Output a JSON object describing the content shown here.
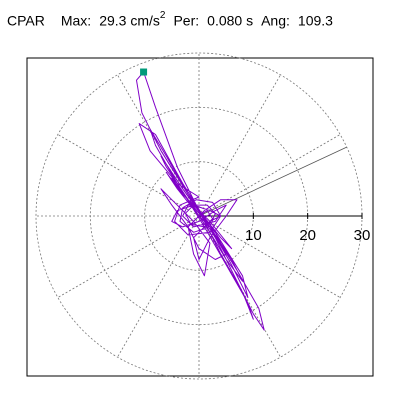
{
  "header": {
    "station": "CPAR",
    "max_label": "Max:",
    "max_value": "29.3 cm/s",
    "max_exponent": "2",
    "period_label": "Per:",
    "period_value": "0.080 s",
    "angle_label": "Ang:",
    "angle_value": "109.3"
  },
  "chart_data": {
    "type": "polar-hodogram",
    "r_ticks": [
      10,
      20,
      30
    ],
    "r_tick_labels": [
      "10",
      "20",
      "30"
    ],
    "r_max": 30,
    "grid": true,
    "spokes_deg": [
      0,
      30,
      60,
      90,
      120,
      150,
      180,
      210,
      240,
      270,
      300,
      330
    ],
    "direction_line": {
      "angle_deg": 25,
      "length": 30
    },
    "peak_marker": {
      "x": -10.2,
      "y": 26.5
    },
    "trace_color": "#8000c8",
    "marker_color": "#009a7a",
    "trace": [
      [
        0,
        0
      ],
      [
        1.5,
        1
      ],
      [
        2.5,
        -0.5
      ],
      [
        1,
        -2
      ],
      [
        -1.5,
        -1.5
      ],
      [
        -2.5,
        0.5
      ],
      [
        -1,
        2
      ],
      [
        1.5,
        2
      ],
      [
        3,
        0.5
      ],
      [
        2,
        -2
      ],
      [
        -1,
        -3
      ],
      [
        -3.5,
        -1
      ],
      [
        -3,
        1.5
      ],
      [
        -0.5,
        3
      ],
      [
        2.5,
        2.5
      ],
      [
        4,
        0
      ],
      [
        2,
        -3
      ],
      [
        -2,
        -3.5
      ],
      [
        -4.5,
        -1
      ],
      [
        -3.5,
        2
      ],
      [
        0,
        3.5
      ],
      [
        -4,
        6
      ],
      [
        -9,
        12
      ],
      [
        -11,
        17
      ],
      [
        -8,
        15
      ],
      [
        -3,
        6
      ],
      [
        2,
        -2
      ],
      [
        6,
        -9
      ],
      [
        9,
        -15
      ],
      [
        8,
        -11
      ],
      [
        3,
        -3
      ],
      [
        -2,
        4
      ],
      [
        -7,
        12
      ],
      [
        -10.5,
        19
      ],
      [
        -11.5,
        25
      ],
      [
        -10.2,
        26.5
      ],
      [
        -8,
        20
      ],
      [
        -4,
        9
      ],
      [
        0,
        1
      ],
      [
        4,
        -7
      ],
      [
        8,
        -14
      ],
      [
        10,
        -19
      ],
      [
        9,
        -16
      ],
      [
        5,
        -9
      ],
      [
        1,
        -2
      ],
      [
        -4,
        6
      ],
      [
        -8,
        13
      ],
      [
        -9,
        16
      ],
      [
        -6,
        11
      ],
      [
        -2,
        4
      ],
      [
        3,
        -4
      ],
      [
        7,
        -12
      ],
      [
        10,
        -18
      ],
      [
        12,
        -21
      ],
      [
        11,
        -17
      ],
      [
        7,
        -10
      ],
      [
        2,
        -2
      ],
      [
        -3,
        5
      ],
      [
        -7,
        11
      ],
      [
        -6,
        9
      ],
      [
        -2,
        3
      ],
      [
        2,
        -3
      ],
      [
        5,
        -8
      ],
      [
        8,
        -12
      ],
      [
        6,
        -8
      ],
      [
        2,
        -2
      ],
      [
        -2,
        3
      ],
      [
        -5,
        7
      ],
      [
        -3,
        4
      ],
      [
        2,
        -1
      ],
      [
        6,
        -6
      ],
      [
        4,
        -4
      ],
      [
        0,
        1
      ],
      [
        -3,
        4
      ],
      [
        -6,
        8
      ],
      [
        -4,
        5
      ],
      [
        0,
        0
      ],
      [
        3,
        -3
      ],
      [
        5,
        -7
      ],
      [
        3,
        -8
      ],
      [
        0,
        -6
      ],
      [
        -2,
        -2
      ],
      [
        -5,
        2
      ],
      [
        -7,
        5
      ],
      [
        -5,
        3
      ],
      [
        -1,
        -1
      ],
      [
        2,
        -5
      ],
      [
        1,
        -11
      ],
      [
        -1,
        -7
      ],
      [
        -2,
        -2
      ],
      [
        1,
        1
      ],
      [
        4,
        3
      ],
      [
        7,
        3
      ],
      [
        5,
        0
      ],
      [
        2,
        -4
      ],
      [
        0,
        -8
      ],
      [
        -1,
        -4
      ],
      [
        2,
        -1
      ],
      [
        4,
        0
      ],
      [
        2,
        1
      ],
      [
        -1,
        2
      ],
      [
        -4,
        1
      ],
      [
        -5,
        -1
      ],
      [
        -3,
        -2
      ],
      [
        0,
        -1
      ],
      [
        3,
        1
      ],
      [
        5,
        2
      ],
      [
        3,
        -1
      ],
      [
        -1,
        -2
      ],
      [
        -3,
        0
      ],
      [
        -2,
        2
      ],
      [
        1,
        2
      ]
    ]
  }
}
